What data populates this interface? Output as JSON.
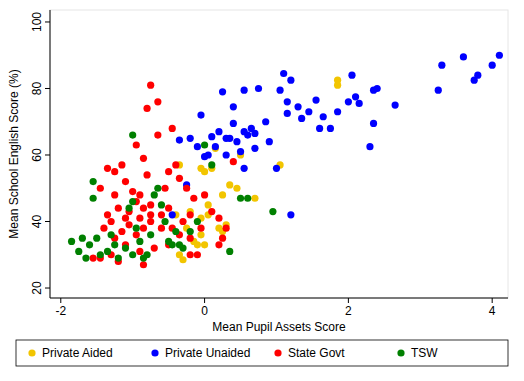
{
  "chart_data": {
    "type": "scatter",
    "x_label": "Mean Pupil Assets Score",
    "y_label": "Mean School English Score (%)",
    "xlim": [
      -2.15,
      4.22
    ],
    "ylim": [
      17,
      103.6
    ],
    "xticks": [
      -2,
      0,
      2,
      4
    ],
    "yticks": [
      20,
      40,
      60,
      80,
      100
    ],
    "grid": false,
    "legend": "bottom",
    "marker": "circle",
    "series": [
      {
        "name": "Private Aided",
        "color": "#f2c500",
        "x": [
          1.85,
          1.85,
          1.05,
          0.7,
          0.45,
          0.35,
          0.25,
          0.3,
          0.2,
          0.05,
          -0.05,
          0.0,
          -0.05,
          -0.1,
          -0.15,
          -0.35,
          -0.3,
          -0.35,
          -0.25,
          -0.4,
          0.0,
          -0.05,
          0.1,
          0.15,
          0.5,
          -0.2,
          0.25,
          0.05
        ],
        "values": [
          82.5,
          81,
          57,
          47,
          50,
          51,
          48,
          39,
          38,
          42,
          41,
          33,
          36,
          33,
          34,
          30,
          28.5,
          57,
          38,
          42,
          55,
          56,
          56,
          62,
          60,
          43,
          37,
          45
        ]
      },
      {
        "name": "Private Unaided",
        "color": "#0000ff",
        "x": [
          4.1,
          4.0,
          3.6,
          3.8,
          3.75,
          3.3,
          3.25,
          2.65,
          2.4,
          2.35,
          2.35,
          2.3,
          2.05,
          2.1,
          2.15,
          2.0,
          1.85,
          1.65,
          1.75,
          1.6,
          1.45,
          1.55,
          1.3,
          1.35,
          1.2,
          1.1,
          1.15,
          1.15,
          1.05,
          1.0,
          1.2,
          0.75,
          0.7,
          0.7,
          0.65,
          0.55,
          0.55,
          0.6,
          0.5,
          0.45,
          0.4,
          0.4,
          0.35,
          0.3,
          0.25,
          0.2,
          0.15,
          0.1,
          0.05,
          0.0,
          -0.05,
          -0.1,
          -0.2,
          -0.25,
          -0.35,
          -0.45,
          0.85,
          0.9,
          0.55,
          0.3
        ],
        "values": [
          90,
          87,
          89.5,
          84,
          82.5,
          87,
          79.5,
          75,
          80,
          79.5,
          69.5,
          62.5,
          84,
          77.5,
          75.5,
          76,
          73,
          71.5,
          68,
          68,
          73,
          76.5,
          74.5,
          71,
          82.5,
          84.5,
          76,
          72.5,
          79.5,
          56,
          42,
          80,
          66.5,
          62,
          68,
          79.5,
          67,
          66,
          61,
          64,
          69.5,
          74.5,
          65,
          65,
          79,
          67,
          62.5,
          65.5,
          60,
          59.5,
          72,
          62.5,
          65,
          51,
          64.5,
          42,
          70,
          64,
          56,
          60
        ]
      },
      {
        "name": "State Govt",
        "color": "#ff0000",
        "x": [
          -0.75,
          -0.8,
          -0.65,
          -0.65,
          -0.45,
          -0.95,
          -0.85,
          -1.15,
          -1.25,
          -1.35,
          -1.45,
          -1.1,
          -0.8,
          -1.0,
          -0.9,
          -0.95,
          -0.85,
          -0.75,
          -0.75,
          -0.9,
          -1.05,
          -1.1,
          -1.2,
          -1.25,
          -1.3,
          -1.35,
          -1.4,
          -1.25,
          -1.15,
          -1.05,
          -0.95,
          -0.85,
          -0.75,
          -0.6,
          -0.5,
          -0.55,
          -0.5,
          -0.4,
          -0.35,
          -0.25,
          -0.15,
          -0.2,
          -0.3,
          -0.35,
          -0.2,
          -0.1,
          -0.2,
          -0.5,
          -0.7,
          -0.9,
          -1.1,
          -1.3,
          -1.45,
          -1.55,
          -1.2,
          -0.85,
          0.0,
          0.1,
          0.2,
          0.3,
          0.25,
          0.4,
          0.2,
          -0.05,
          -0.6,
          -0.45
        ],
        "values": [
          81,
          74,
          76,
          66,
          68,
          63,
          59,
          57,
          55,
          56,
          50,
          52,
          54,
          49,
          48,
          46,
          44,
          45,
          42,
          41,
          43,
          41,
          44,
          48,
          40,
          42,
          38,
          35,
          37,
          39,
          36,
          38,
          40,
          42,
          44,
          50,
          55,
          57,
          53,
          50,
          47,
          42,
          40,
          36,
          35,
          30,
          30,
          33,
          32,
          31,
          33,
          30,
          29,
          29,
          28,
          27,
          48,
          43,
          41,
          38,
          35,
          58,
          33,
          38,
          38,
          38
        ]
      },
      {
        "name": "TSW",
        "color": "#008000",
        "x": [
          -1.85,
          -1.75,
          -1.65,
          -1.6,
          -1.55,
          -1.55,
          -1.5,
          -1.45,
          -1.35,
          -1.3,
          -1.25,
          -1.1,
          -1.05,
          -1.0,
          -0.95,
          -0.9,
          -1.0,
          -0.8,
          -0.75,
          -0.7,
          -0.65,
          -0.6,
          -0.55,
          -0.5,
          -0.45,
          -0.4,
          -0.35,
          -0.3,
          -0.2,
          -0.1,
          0.0,
          0.1,
          0.35,
          0.5,
          0.6,
          0.95,
          -1.2,
          -1.7,
          -0.85,
          -1.0
        ],
        "values": [
          34,
          31,
          29,
          33,
          52,
          47,
          35,
          30,
          31,
          36,
          33,
          32,
          44,
          46,
          38,
          34,
          66,
          30,
          36,
          48,
          50,
          45,
          40,
          34,
          33,
          37,
          33,
          32,
          37,
          40,
          63,
          57,
          31,
          47,
          47,
          43,
          29,
          35,
          29,
          30
        ]
      }
    ]
  }
}
